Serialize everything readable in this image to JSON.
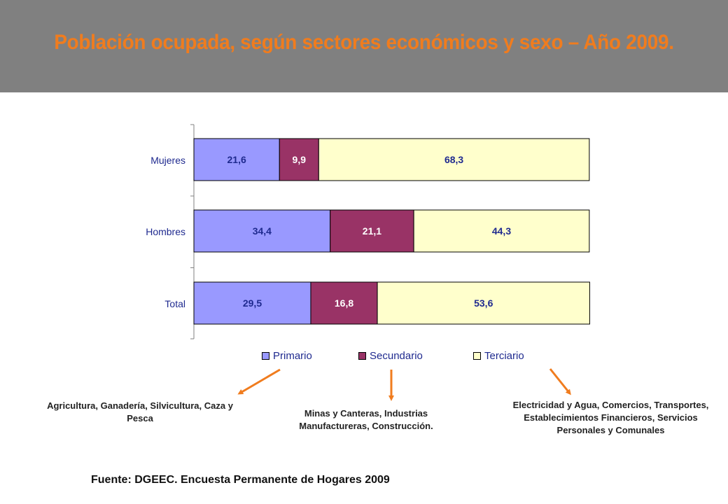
{
  "title": "Población ocupada, según sectores económicos y sexo – Año 2009.",
  "colors": {
    "header_bg": "#808080",
    "title": "#f07c1e",
    "primario": "#9999ff",
    "secundario": "#993366",
    "terciario": "#ffffcc",
    "label_dark": "#1f2a8f",
    "label_light": "#ffffff",
    "arrow": "#f07c1e"
  },
  "chart_data": {
    "type": "bar",
    "orientation": "horizontal",
    "stacked": "100%",
    "categories": [
      "Mujeres",
      "Hombres",
      "Total"
    ],
    "series": [
      {
        "name": "Primario",
        "values": [
          21.6,
          34.4,
          29.5
        ],
        "labels": [
          "21,6",
          "34,4",
          "29,5"
        ]
      },
      {
        "name": "Secundario",
        "values": [
          9.9,
          21.1,
          16.8
        ],
        "labels": [
          "9,9",
          "21,1",
          "16,8"
        ]
      },
      {
        "name": "Terciario",
        "values": [
          68.3,
          44.3,
          53.6
        ],
        "labels": [
          "68,3",
          "44,3",
          "53,6"
        ]
      }
    ],
    "xlim": [
      0,
      100
    ],
    "grid": false,
    "legend_position": "bottom"
  },
  "legend": {
    "primario": "Primario",
    "secundario": "Secundario",
    "terciario": "Terciario"
  },
  "descriptions": {
    "primario": "Agricultura, Ganadería, Silvicultura, Caza y Pesca",
    "secundario": "Minas y Canteras, Industrias Manufactureras, Construcción.",
    "terciario": "Electricidad y Agua, Comercios, Transportes, Establecimientos Financieros, Servicios Personales y Comunales"
  },
  "source": "Fuente: DGEEC. Encuesta Permanente de Hogares 2009"
}
